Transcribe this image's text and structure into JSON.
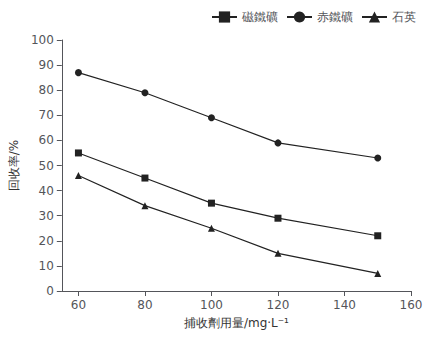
{
  "chart_data": {
    "type": "line",
    "xlabel": "捕收劑用量/mg·L⁻¹",
    "ylabel": "回收率/%",
    "x": [
      60,
      80,
      100,
      120,
      150
    ],
    "series": [
      {
        "name": "磁鐵礦",
        "color": "#222222",
        "marker": "square",
        "line_style": "solid",
        "values": [
          55,
          45,
          35,
          29,
          22
        ]
      },
      {
        "name": "赤鐵礦",
        "color": "#222222",
        "marker": "circle",
        "line_style": "solid",
        "values": [
          87,
          79,
          69,
          59,
          53
        ]
      },
      {
        "name": "石英",
        "color": "#222222",
        "marker": "triangle",
        "line_style": "solid",
        "values": [
          46,
          34,
          25,
          15,
          7
        ]
      }
    ],
    "xlim": [
      55,
      160
    ],
    "ylim": [
      0,
      100
    ],
    "xticks": [
      60,
      80,
      100,
      120,
      140,
      160
    ],
    "yticks": [
      0,
      10,
      20,
      30,
      40,
      50,
      60,
      70,
      80,
      90,
      100
    ],
    "grid": false,
    "legend": "upper right"
  }
}
